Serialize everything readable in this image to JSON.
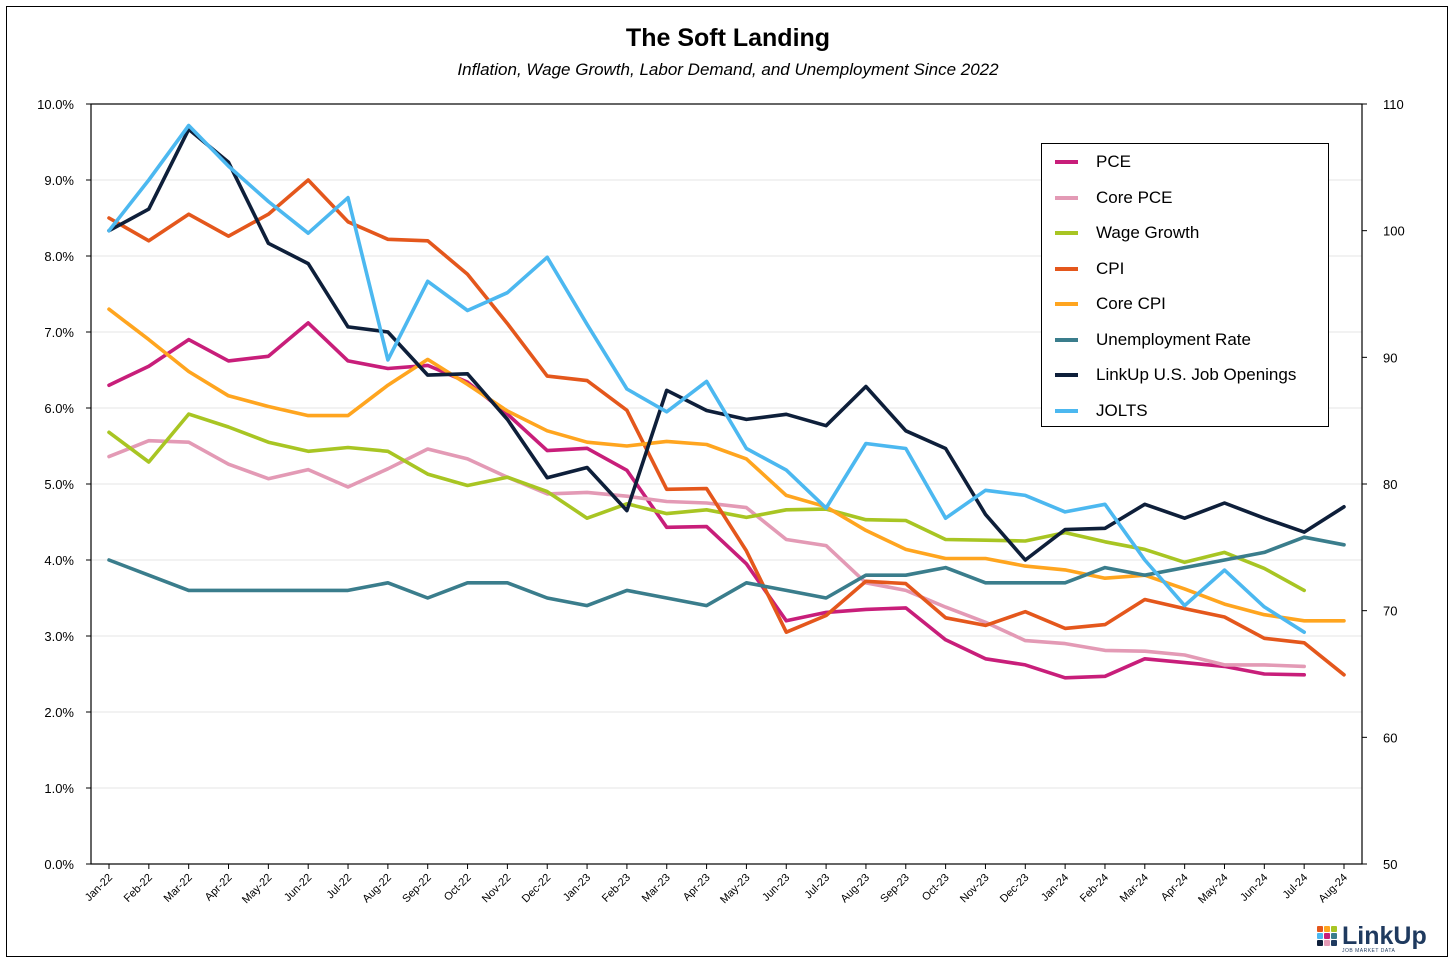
{
  "chart_data": {
    "type": "line",
    "title": "The Soft Landing",
    "subtitle": "Inflation, Wage Growth, Labor Demand, and Unemployment Since 2022",
    "categories": [
      "Jan-22",
      "Feb-22",
      "Mar-22",
      "Apr-22",
      "May-22",
      "Jun-22",
      "Jul-22",
      "Aug-22",
      "Sep-22",
      "Oct-22",
      "Nov-22",
      "Dec-22",
      "Jan-23",
      "Feb-23",
      "Mar-23",
      "Apr-23",
      "May-23",
      "Jun-23",
      "Jul-23",
      "Aug-23",
      "Sep-23",
      "Oct-23",
      "Nov-23",
      "Dec-23",
      "Jan-24",
      "Feb-24",
      "Mar-24",
      "Apr-24",
      "May-24",
      "Jun-24",
      "Jul-24",
      "Aug-24"
    ],
    "left_axis": {
      "ylim": [
        0,
        10
      ],
      "ticks": [
        "0.0%",
        "1.0%",
        "2.0%",
        "3.0%",
        "4.0%",
        "5.0%",
        "6.0%",
        "7.0%",
        "8.0%",
        "9.0%",
        "10.0%"
      ]
    },
    "right_axis": {
      "ylim": [
        50,
        110
      ],
      "ticks": [
        "50",
        "60",
        "70",
        "80",
        "90",
        "100",
        "110"
      ]
    },
    "grid": true,
    "legend_position": "top-right",
    "series": [
      {
        "name": "PCE",
        "color": "#c81e7a",
        "axis": "left",
        "values": [
          6.3,
          6.55,
          6.9,
          6.62,
          6.68,
          7.12,
          6.62,
          6.52,
          6.56,
          6.34,
          5.92,
          5.44,
          5.47,
          5.18,
          4.43,
          4.44,
          3.95,
          3.2,
          3.31,
          3.35,
          3.37,
          2.95,
          2.7,
          2.62,
          2.45,
          2.47,
          2.7,
          2.65,
          2.6,
          2.5,
          2.49,
          null
        ]
      },
      {
        "name": "Core PCE",
        "color": "#e39ab5",
        "axis": "left",
        "values": [
          5.36,
          5.57,
          5.55,
          5.26,
          5.07,
          5.19,
          4.96,
          5.2,
          5.46,
          5.33,
          5.09,
          4.87,
          4.89,
          4.84,
          4.77,
          4.75,
          4.69,
          4.27,
          4.19,
          3.7,
          3.6,
          3.38,
          3.18,
          2.94,
          2.9,
          2.81,
          2.8,
          2.75,
          2.62,
          2.62,
          2.6,
          null
        ]
      },
      {
        "name": "Wage Growth",
        "color": "#a8c523",
        "axis": "left",
        "values": [
          5.68,
          5.29,
          5.92,
          5.75,
          5.55,
          5.43,
          5.48,
          5.43,
          5.13,
          4.98,
          5.09,
          4.9,
          4.55,
          4.74,
          4.61,
          4.66,
          4.56,
          4.66,
          4.67,
          4.53,
          4.52,
          4.27,
          4.26,
          4.25,
          4.36,
          4.24,
          4.14,
          3.97,
          4.1,
          3.89,
          3.6,
          null
        ]
      },
      {
        "name": "CPI",
        "color": "#e4571c",
        "axis": "left",
        "values": [
          8.5,
          8.2,
          8.55,
          8.26,
          8.55,
          9.0,
          8.45,
          8.22,
          8.2,
          7.76,
          7.11,
          6.42,
          6.36,
          5.97,
          4.93,
          4.94,
          4.12,
          3.05,
          3.27,
          3.72,
          3.69,
          3.24,
          3.14,
          3.32,
          3.1,
          3.15,
          3.48,
          3.36,
          3.25,
          2.97,
          2.91,
          2.49
        ]
      },
      {
        "name": "Core CPI",
        "color": "#ffa51f",
        "axis": "left",
        "values": [
          7.3,
          6.9,
          6.48,
          6.16,
          6.02,
          5.9,
          5.9,
          6.3,
          6.64,
          6.31,
          5.96,
          5.7,
          5.55,
          5.5,
          5.56,
          5.52,
          5.33,
          4.85,
          4.7,
          4.39,
          4.14,
          4.02,
          4.02,
          3.92,
          3.87,
          3.76,
          3.8,
          3.62,
          3.42,
          3.28,
          3.2,
          3.2
        ]
      },
      {
        "name": "Unemployment Rate",
        "color": "#3a7d8c",
        "axis": "left",
        "values": [
          4.0,
          3.8,
          3.6,
          3.6,
          3.6,
          3.6,
          3.6,
          3.7,
          3.5,
          3.7,
          3.7,
          3.5,
          3.4,
          3.6,
          3.5,
          3.4,
          3.7,
          3.6,
          3.5,
          3.8,
          3.8,
          3.9,
          3.7,
          3.7,
          3.7,
          3.9,
          3.8,
          3.9,
          4.0,
          4.1,
          4.3,
          4.2
        ]
      },
      {
        "name": "LinkUp U.S. Job Openings",
        "color": "#0e1f3a",
        "axis": "right",
        "values": [
          100.0,
          101.7,
          108.0,
          105.4,
          99.0,
          97.4,
          92.4,
          92.0,
          88.6,
          88.7,
          85.1,
          80.5,
          81.3,
          77.9,
          87.4,
          85.8,
          85.1,
          85.5,
          84.6,
          87.7,
          84.2,
          82.8,
          77.6,
          74.0,
          76.4,
          76.5,
          78.4,
          77.3,
          78.5,
          77.3,
          76.2,
          78.2
        ]
      },
      {
        "name": "JOLTS",
        "color": "#4cb8f0",
        "axis": "right",
        "values": [
          100.0,
          104.0,
          108.3,
          105.1,
          102.3,
          99.8,
          102.6,
          89.8,
          96.0,
          93.7,
          95.1,
          97.9,
          92.6,
          87.5,
          85.7,
          88.1,
          82.8,
          81.1,
          78.1,
          83.2,
          82.8,
          77.3,
          79.5,
          79.1,
          77.8,
          78.4,
          74.0,
          70.4,
          73.2,
          70.3,
          68.3,
          null
        ]
      }
    ]
  },
  "logo": {
    "text": "LinkUp",
    "tagline": "JOB MARKET DATA",
    "colors": [
      "#e4571c",
      "#ffa51f",
      "#a8c523",
      "#4cb8f0",
      "#c81e7a",
      "#3a7d8c",
      "#0e1f3a",
      "#e39ab5",
      "#1f3a5f"
    ]
  }
}
